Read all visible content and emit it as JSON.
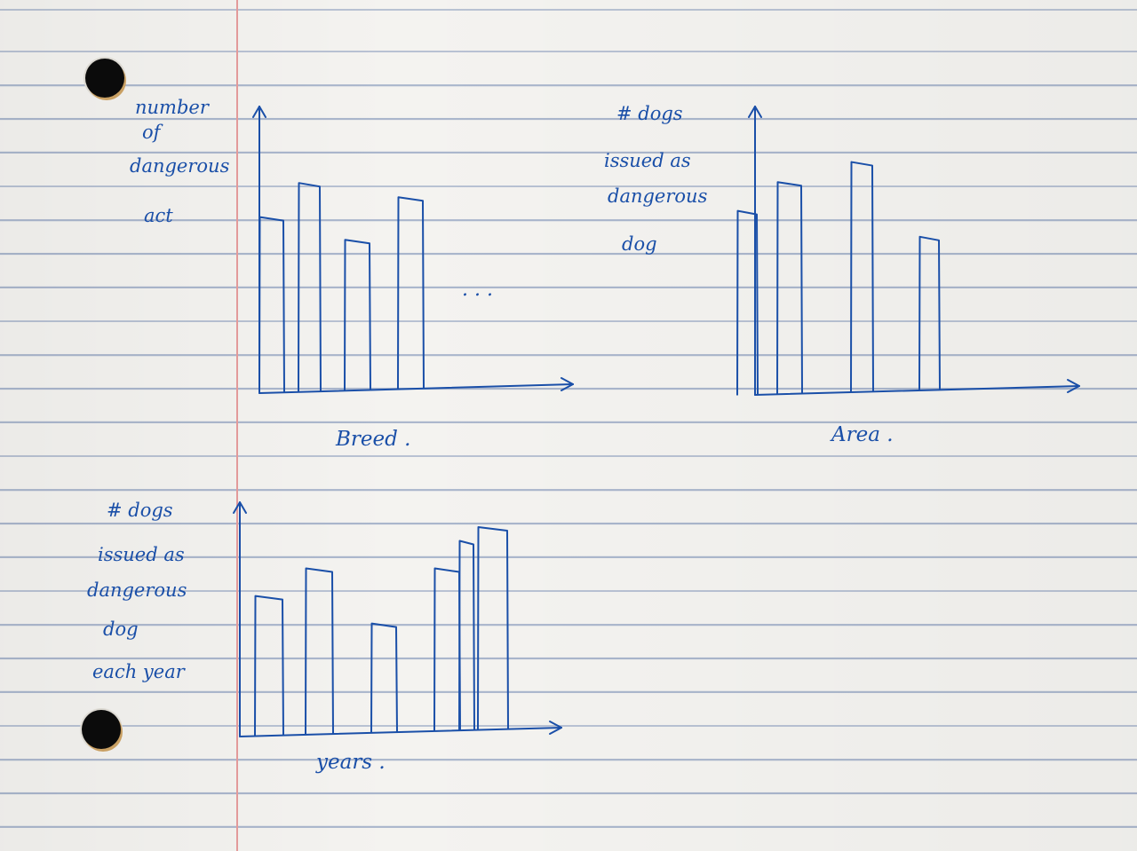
{
  "page": {
    "ink_color": "#1a4fa8",
    "margin_color": "#e39a9a",
    "rule_color": "#aab6cc",
    "paper_color": "#f4f3f0"
  },
  "chart_data": [
    {
      "type": "bar",
      "ylabel": "number of dangerous act",
      "xlabel": "Breed .",
      "categories": [
        "",
        "",
        "",
        ""
      ],
      "values": [
        6.2,
        7.4,
        5.4,
        6.9
      ],
      "continuation": ". . .",
      "ylim": [
        0,
        10
      ],
      "grid": false
    },
    {
      "type": "bar",
      "ylabel": "# dogs issued as dangerous dog",
      "xlabel": "Area .",
      "categories": [
        "",
        "",
        "",
        ""
      ],
      "values": [
        6.4,
        7.4,
        8.1,
        5.5
      ],
      "ylim": [
        0,
        10
      ],
      "grid": false
    },
    {
      "type": "bar",
      "ylabel": "# dogs issued as dangerous dog each year",
      "xlabel": "years .",
      "categories": [
        "",
        "",
        "",
        "",
        "",
        ""
      ],
      "values": [
        5.1,
        6.1,
        4.1,
        6.1,
        7.1,
        7.6
      ],
      "ylim": [
        0,
        8.5
      ],
      "grid": false
    }
  ]
}
